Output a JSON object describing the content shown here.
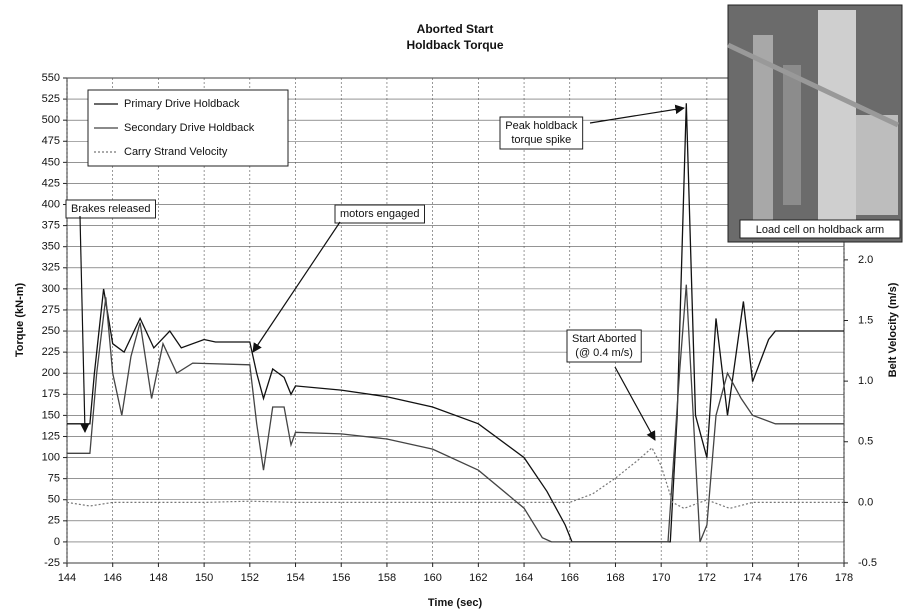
{
  "chart_data": {
    "type": "line",
    "title": "Aborted Start",
    "subtitle": "Holdback Torque",
    "x_label": "Time (sec)",
    "y_label": "Torque (kN-m)",
    "y2_label": "Belt Velocity (m/s)",
    "xlim": [
      144,
      178
    ],
    "xticks": [
      144,
      146,
      148,
      150,
      152,
      154,
      156,
      158,
      160,
      162,
      164,
      166,
      168,
      170,
      172,
      174,
      176,
      178
    ],
    "ylim": [
      -25,
      550
    ],
    "yticks": [
      -25,
      0,
      25,
      50,
      75,
      100,
      125,
      150,
      175,
      200,
      225,
      250,
      275,
      300,
      325,
      350,
      375,
      400,
      425,
      450,
      475,
      500,
      525,
      550
    ],
    "y2lim": [
      -0.5,
      3.5
    ],
    "y2ticks": [
      -0.5,
      {
        "value": 0,
        "label": "0.0"
      },
      0.5,
      {
        "value": 1,
        "label": "1.0"
      },
      1.5,
      {
        "value": 2,
        "label": "2.0"
      }
    ],
    "grid": true,
    "legend": "upper left",
    "series": [
      {
        "name": "Primary Drive Holdback",
        "color": "#111111",
        "dash": "solid",
        "x": [
          144,
          145,
          145.2,
          145.6,
          146,
          146.5,
          147.2,
          147.8,
          148.5,
          149,
          150,
          150.5,
          152,
          152.3,
          152.6,
          153,
          153.5,
          153.8,
          154,
          156,
          158,
          160,
          162,
          164,
          165,
          165.8,
          166.1,
          170.4,
          170.7,
          171.1,
          171.5,
          172,
          172.4,
          172.9,
          173.6,
          174,
          174.7,
          175,
          178
        ],
        "values": [
          140,
          140,
          200,
          300,
          235,
          225,
          265,
          230,
          250,
          230,
          240,
          237,
          237,
          200,
          170,
          205,
          195,
          175,
          185,
          180,
          172,
          160,
          140,
          100,
          60,
          20,
          0,
          0,
          150,
          520,
          150,
          100,
          265,
          150,
          285,
          190,
          240,
          250,
          250
        ]
      },
      {
        "name": "Secondary Drive Holdback",
        "color": "#444444",
        "dash": "solid",
        "x": [
          144,
          145,
          145.3,
          145.7,
          146,
          146.4,
          146.8,
          147.2,
          147.7,
          148.2,
          148.8,
          149.5,
          152,
          152.3,
          152.6,
          153,
          153.5,
          153.8,
          154,
          156,
          158,
          160,
          162,
          164,
          164.8,
          165.2,
          170.3,
          170.8,
          171.1,
          171.4,
          171.7,
          172,
          172.4,
          172.9,
          173.5,
          174,
          175,
          178
        ],
        "values": [
          105,
          105,
          200,
          290,
          200,
          150,
          220,
          260,
          170,
          235,
          200,
          212,
          210,
          140,
          85,
          160,
          160,
          115,
          130,
          128,
          122,
          110,
          85,
          40,
          5,
          0,
          0,
          200,
          305,
          150,
          0,
          20,
          150,
          200,
          170,
          150,
          140,
          140
        ]
      },
      {
        "name": "Carry Strand Velocity",
        "color": "#777777",
        "dash": "dotted",
        "axis": "y2",
        "x": [
          144,
          145,
          146,
          150,
          152,
          154,
          158,
          162,
          166,
          167,
          168,
          169,
          169.6,
          170,
          170.5,
          171,
          172,
          173,
          174,
          178
        ],
        "values": [
          0,
          -0.03,
          0,
          0,
          0.01,
          0,
          0,
          0,
          0,
          0.07,
          0.2,
          0.35,
          0.45,
          0.3,
          0,
          -0.05,
          0.02,
          -0.05,
          0,
          0
        ]
      }
    ],
    "annotations": [
      {
        "lines": [
          "Brakes released"
        ]
      },
      {
        "lines": [
          "motors engaged"
        ]
      },
      {
        "lines": [
          "Peak holdback",
          "torque spike"
        ]
      },
      {
        "lines": [
          "Start Aborted",
          "(@ 0.4 m/s)"
        ]
      }
    ],
    "inset_caption": "Load cell on holdback arm"
  }
}
